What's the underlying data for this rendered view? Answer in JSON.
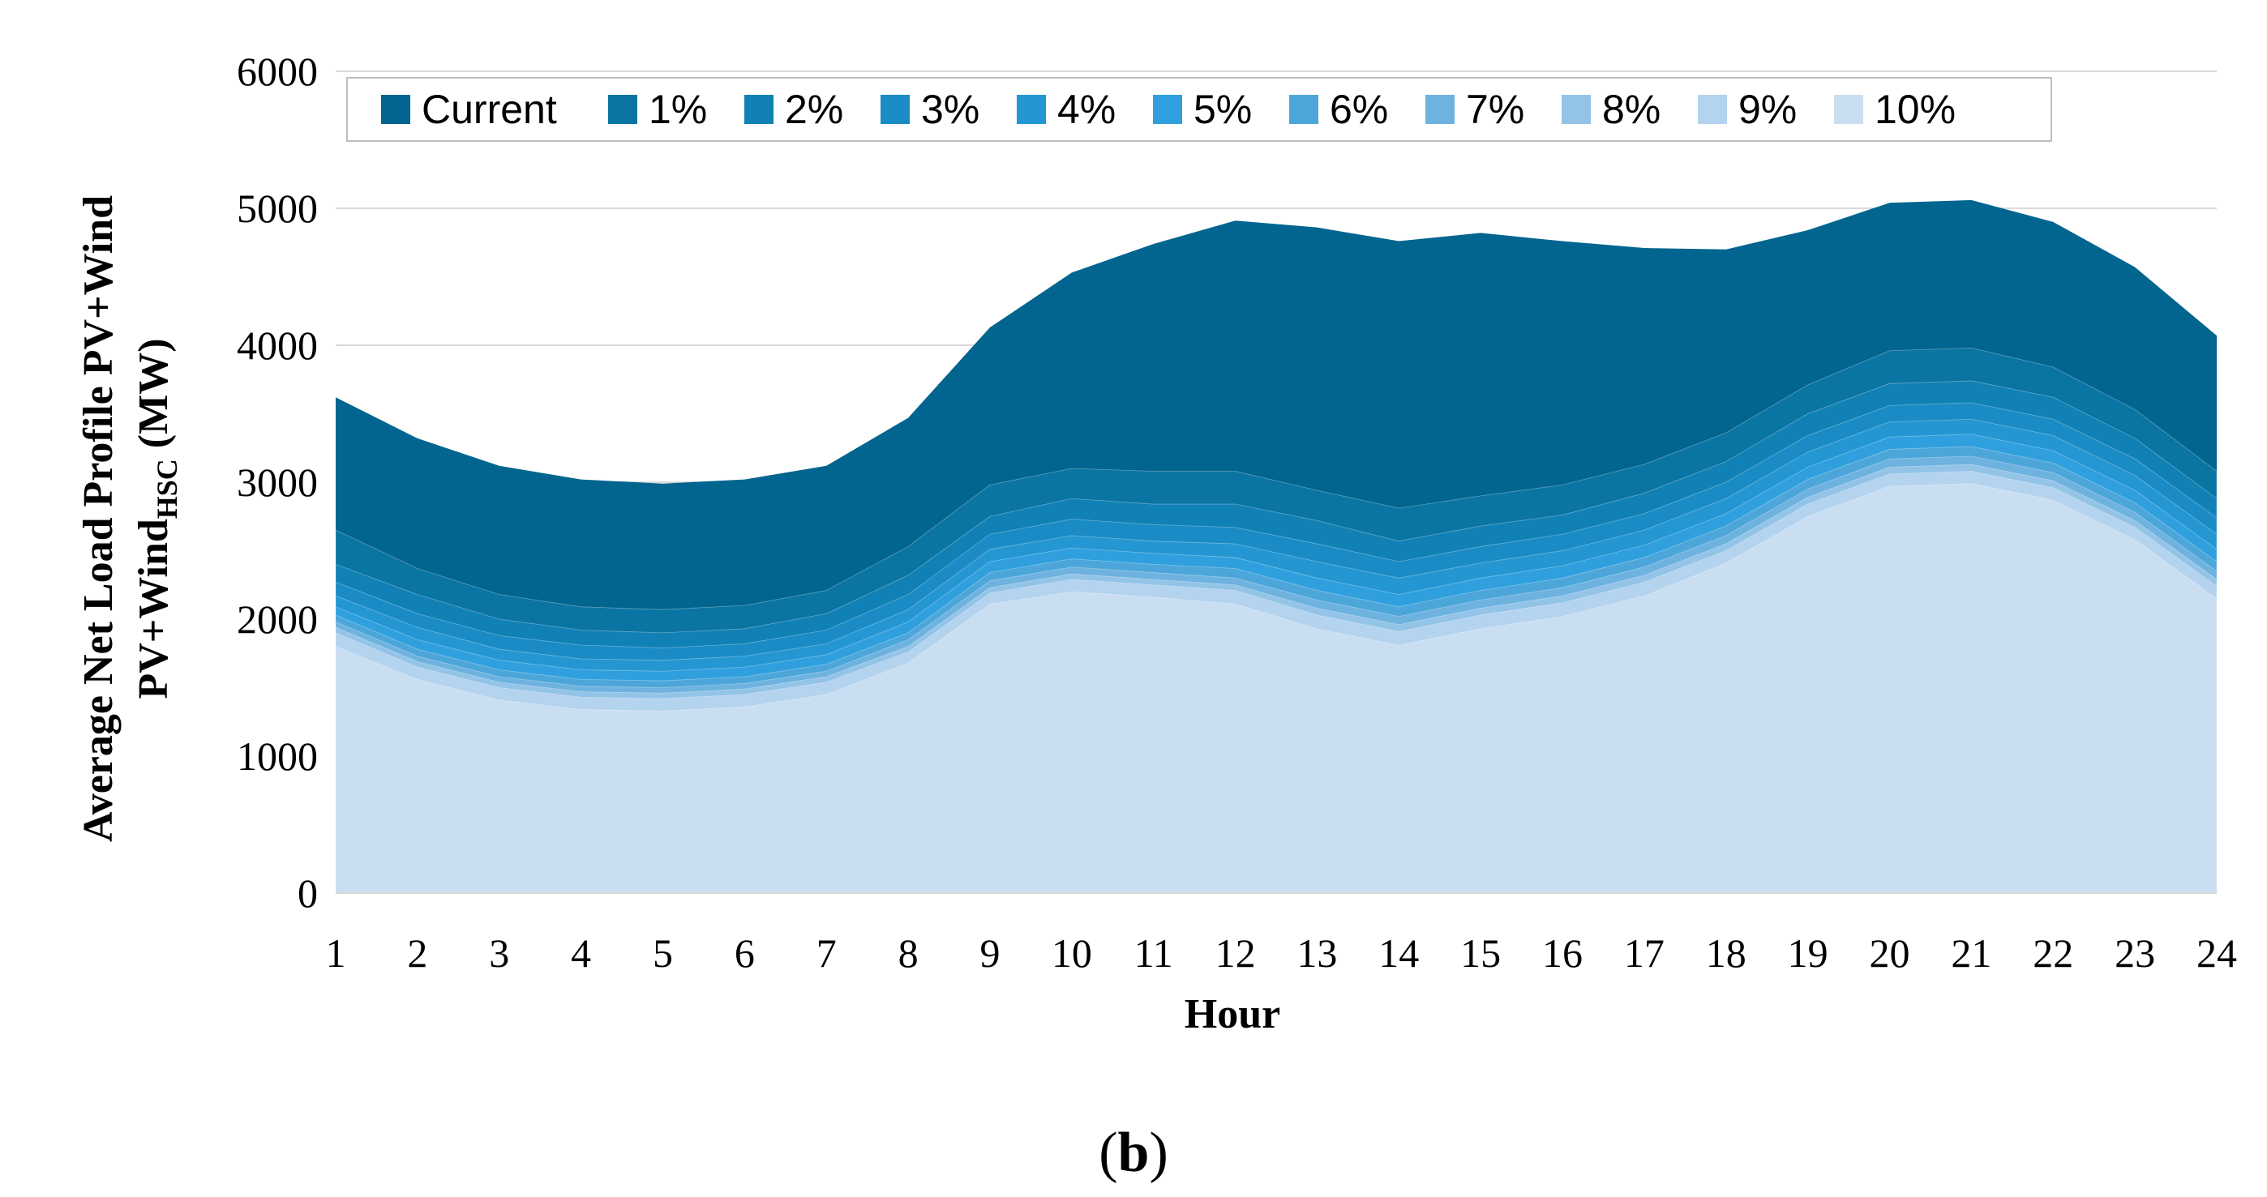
{
  "chart_data": {
    "type": "area",
    "title": "",
    "xlabel": "Hour",
    "ylabel_line1": "Average Net Load Profile PV+Wind",
    "ylabel_line2_main": "PV+Wind",
    "ylabel_line2_sub": "HSC",
    "ylabel_line2_unit": " (MW)",
    "panel_label_open": "(",
    "panel_label_letter": "b",
    "panel_label_close": ")",
    "x": [
      1,
      2,
      3,
      4,
      5,
      6,
      7,
      8,
      9,
      10,
      11,
      12,
      13,
      14,
      15,
      16,
      17,
      18,
      19,
      20,
      21,
      22,
      23,
      24
    ],
    "x_tick_labels": [
      "1",
      "2",
      "3",
      "4",
      "5",
      "6",
      "7",
      "8",
      "9",
      "10",
      "11",
      "12",
      "13",
      "14",
      "15",
      "16",
      "17",
      "18",
      "19",
      "20",
      "21",
      "22",
      "23",
      "24"
    ],
    "ylim": [
      0,
      6000
    ],
    "y_ticks": [
      0,
      1000,
      2000,
      3000,
      4000,
      5000,
      6000
    ],
    "y_tick_labels": [
      "0",
      "1000",
      "2000",
      "3000",
      "4000",
      "5000",
      "6000"
    ],
    "grid": true,
    "legend_position": "top",
    "series": [
      {
        "name": "Current",
        "color": "#02658f",
        "values": [
          3620,
          3320,
          3120,
          3020,
          2990,
          3020,
          3120,
          3470,
          4130,
          4530,
          4740,
          4910,
          4860,
          4760,
          4820,
          4760,
          4710,
          4700,
          4840,
          5040,
          5060,
          4900,
          4570,
          4070
        ]
      },
      {
        "name": "1%",
        "color": "#0a74a2",
        "values": [
          2650,
          2370,
          2180,
          2090,
          2070,
          2100,
          2210,
          2530,
          2980,
          3100,
          3080,
          3080,
          2940,
          2810,
          2900,
          2980,
          3130,
          3360,
          3710,
          3960,
          3980,
          3840,
          3530,
          3080
        ]
      },
      {
        "name": "2%",
        "color": "#1180b5",
        "values": [
          2400,
          2180,
          2000,
          1920,
          1900,
          1930,
          2040,
          2320,
          2750,
          2880,
          2840,
          2840,
          2720,
          2570,
          2680,
          2760,
          2920,
          3150,
          3500,
          3720,
          3740,
          3620,
          3320,
          2880
        ]
      },
      {
        "name": "3%",
        "color": "#1a8bc4",
        "values": [
          2270,
          2040,
          1880,
          1810,
          1790,
          1820,
          1920,
          2180,
          2620,
          2730,
          2690,
          2670,
          2550,
          2420,
          2530,
          2620,
          2770,
          3000,
          3340,
          3560,
          3580,
          3460,
          3170,
          2740
        ]
      },
      {
        "name": "4%",
        "color": "#2497d2",
        "values": [
          2170,
          1940,
          1780,
          1710,
          1700,
          1730,
          1820,
          2070,
          2510,
          2610,
          2570,
          2550,
          2420,
          2300,
          2410,
          2500,
          2650,
          2880,
          3220,
          3440,
          3460,
          3340,
          3050,
          2620
        ]
      },
      {
        "name": "5%",
        "color": "#2fa0dd",
        "values": [
          2090,
          1850,
          1700,
          1630,
          1620,
          1650,
          1740,
          1980,
          2420,
          2520,
          2480,
          2450,
          2300,
          2180,
          2300,
          2390,
          2540,
          2770,
          3110,
          3330,
          3350,
          3230,
          2940,
          2510
        ]
      },
      {
        "name": "6%",
        "color": "#4ca6da",
        "values": [
          2030,
          1780,
          1630,
          1560,
          1550,
          1580,
          1670,
          1900,
          2340,
          2440,
          2400,
          2370,
          2210,
          2090,
          2210,
          2300,
          2450,
          2680,
          3020,
          3240,
          3260,
          3140,
          2850,
          2420
        ]
      },
      {
        "name": "7%",
        "color": "#6eb2df",
        "values": [
          1980,
          1730,
          1580,
          1510,
          1500,
          1530,
          1620,
          1850,
          2280,
          2380,
          2340,
          2300,
          2140,
          2020,
          2140,
          2230,
          2380,
          2610,
          2950,
          3170,
          3190,
          3070,
          2780,
          2350
        ]
      },
      {
        "name": "8%",
        "color": "#93c4e7",
        "values": [
          1940,
          1690,
          1540,
          1470,
          1460,
          1490,
          1580,
          1800,
          2230,
          2330,
          2290,
          2250,
          2080,
          1960,
          2080,
          2170,
          2320,
          2550,
          2890,
          3110,
          3130,
          3010,
          2720,
          2290
        ]
      },
      {
        "name": "9%",
        "color": "#b3d3ee",
        "values": [
          1900,
          1650,
          1500,
          1430,
          1420,
          1450,
          1540,
          1760,
          2190,
          2290,
          2250,
          2210,
          2030,
          1910,
          2030,
          2120,
          2270,
          2500,
          2840,
          3060,
          3080,
          2960,
          2670,
          2240
        ]
      },
      {
        "name": "10%",
        "color": "#cadef1",
        "values": [
          1800,
          1560,
          1410,
          1340,
          1330,
          1360,
          1450,
          1680,
          2110,
          2200,
          2160,
          2110,
          1930,
          1810,
          1930,
          2020,
          2170,
          2410,
          2750,
          2970,
          2990,
          2870,
          2580,
          2150
        ]
      }
    ]
  }
}
